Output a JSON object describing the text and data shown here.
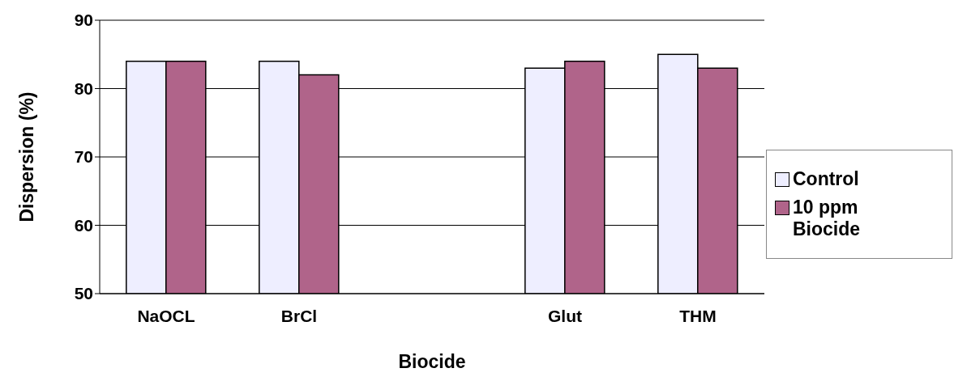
{
  "chart_data": {
    "type": "bar",
    "xlabel": "Biocide",
    "ylabel": "Dispersion (%)",
    "categories": [
      "NaOCL",
      "BrCl",
      null,
      "Glut",
      "THM"
    ],
    "series": [
      {
        "name": "Control",
        "color": "#eeeeff",
        "values": [
          84,
          84,
          null,
          83,
          85
        ]
      },
      {
        "name": "10 ppm Biocide",
        "color": "#b0648a",
        "values": [
          84,
          82,
          null,
          84,
          83
        ]
      }
    ],
    "ylim": [
      50,
      90
    ],
    "yticks": [
      50,
      60,
      70,
      80,
      90
    ],
    "grid": "y",
    "legend": "right"
  }
}
